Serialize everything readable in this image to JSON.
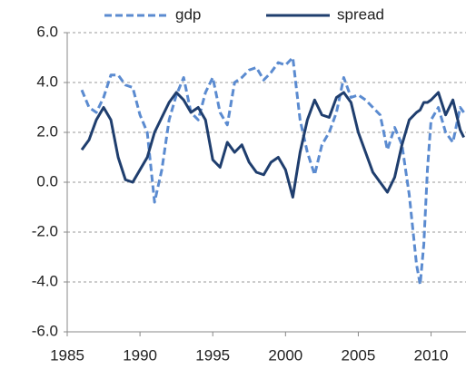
{
  "chart_data": {
    "type": "line",
    "x": [
      1986,
      1986.5,
      1987,
      1987.5,
      1988,
      1988.5,
      1989,
      1989.5,
      1990,
      1990.5,
      1991,
      1991.5,
      1992,
      1992.5,
      1993,
      1993.5,
      1994,
      1994.5,
      1995,
      1995.5,
      1996,
      1996.5,
      1997,
      1997.5,
      1998,
      1998.5,
      1999,
      1999.5,
      2000,
      2000.5,
      2001,
      2001.5,
      2002,
      2002.5,
      2003,
      2003.5,
      2004,
      2004.5,
      2005,
      2005.5,
      2006,
      2006.5,
      2007,
      2007.5,
      2008,
      2008.5,
      2009,
      2009.25,
      2009.5,
      2009.75,
      2010,
      2010.5,
      2011,
      2011.5,
      2012,
      2012.25
    ],
    "series": [
      {
        "name": "gdp",
        "color": "#5b8bd0",
        "dashed": true,
        "values": [
          3.7,
          3.0,
          2.8,
          3.4,
          4.3,
          4.3,
          3.9,
          3.8,
          2.7,
          2.0,
          -0.8,
          0.5,
          2.5,
          3.5,
          4.2,
          2.8,
          2.5,
          3.6,
          4.2,
          2.8,
          2.3,
          4.0,
          4.2,
          4.5,
          4.6,
          4.1,
          4.4,
          4.8,
          4.7,
          5.0,
          2.5,
          1.2,
          0.3,
          1.5,
          2.0,
          2.8,
          4.2,
          3.4,
          3.5,
          3.3,
          3.0,
          2.7,
          1.3,
          2.2,
          1.5,
          -0.5,
          -3.3,
          -4.1,
          -2.5,
          0.5,
          2.5,
          3.0,
          2.0,
          1.6,
          3.0,
          2.8
        ]
      },
      {
        "name": "spread",
        "color": "#1f3e6e",
        "dashed": false,
        "values": [
          1.3,
          1.7,
          2.5,
          3.0,
          2.5,
          1.0,
          0.1,
          0.0,
          0.5,
          1.0,
          2.0,
          2.6,
          3.2,
          3.6,
          3.3,
          2.8,
          3.0,
          2.5,
          0.9,
          0.6,
          1.6,
          1.2,
          1.5,
          0.8,
          0.4,
          0.3,
          0.8,
          1.0,
          0.5,
          -0.6,
          1.2,
          2.5,
          3.3,
          2.7,
          2.6,
          3.4,
          3.6,
          3.2,
          2.0,
          1.2,
          0.4,
          0.0,
          -0.4,
          0.2,
          1.5,
          2.5,
          2.8,
          2.9,
          3.2,
          3.2,
          3.3,
          3.6,
          2.7,
          3.3,
          2.1,
          1.8
        ]
      }
    ],
    "xlim": [
      1985,
      2012.4
    ],
    "xticks": [
      1985,
      1990,
      1995,
      2000,
      2005,
      2010
    ],
    "ylim": [
      -6,
      6
    ],
    "yticks": [
      {
        "value": -6,
        "label": "-6.0"
      },
      {
        "value": -4,
        "label": "-4.0"
      },
      {
        "value": -2,
        "label": "-2.0"
      },
      {
        "value": 0,
        "label": "0.0"
      },
      {
        "value": 2,
        "label": "2.0"
      },
      {
        "value": 4,
        "label": "4.0"
      },
      {
        "value": 6,
        "label": "6.0"
      }
    ],
    "grid": true,
    "legend": "top"
  }
}
